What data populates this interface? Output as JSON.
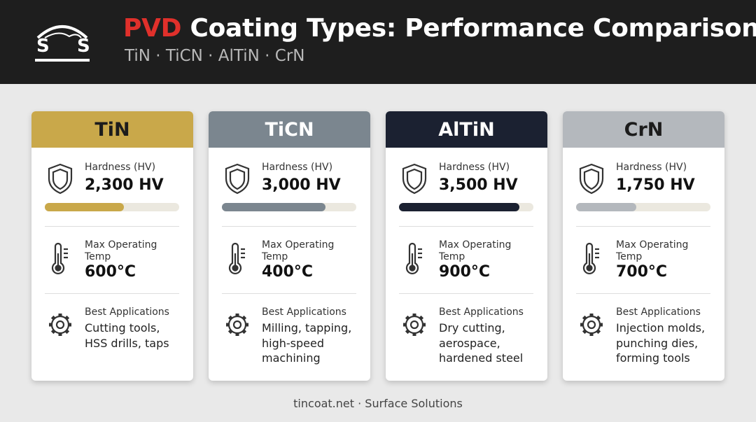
{
  "header": {
    "logo": [
      "S",
      "S"
    ],
    "title_accent": "PVD",
    "title_rest": "Coating Types: Performance Comparison",
    "subtitle": "TiN · TiCN · AlTiN · CrN"
  },
  "hardness_scale": [
    0,
    3900
  ],
  "cards": [
    {
      "name": "TiN",
      "color": "#c9a84a",
      "name_color": "#1c1c1c",
      "hardness_label": "Hardness (HV)",
      "hardness": {
        "value": 2300,
        "label": "2,300 HV"
      },
      "temp_label": "Max Operating Temp",
      "temp": "600°C",
      "apps_label": "Best Applications",
      "apps": [
        "Cutting tools,",
        "HSS drills, taps"
      ]
    },
    {
      "name": "TiCN",
      "color": "#7b868f",
      "name_color": "#ffffff",
      "hardness_label": "Hardness (HV)",
      "hardness": {
        "value": 3000,
        "label": "3,000 HV"
      },
      "temp_label": "Max Operating Temp",
      "temp": "400°C",
      "apps_label": "Best Applications",
      "apps": [
        "Milling, tapping,",
        "high-speed",
        "machining"
      ]
    },
    {
      "name": "AlTiN",
      "color": "#1b2131",
      "name_color": "#ffffff",
      "hardness_label": "Hardness (HV)",
      "hardness": {
        "value": 3500,
        "label": "3,500 HV"
      },
      "temp_label": "Max Operating Temp",
      "temp": "900°C",
      "apps_label": "Best Applications",
      "apps": [
        "Dry cutting,",
        "aerospace,",
        "hardened steel"
      ]
    },
    {
      "name": "CrN",
      "color": "#b4b8bd",
      "name_color": "#1c1c1c",
      "hardness_label": "Hardness (HV)",
      "hardness": {
        "value": 1750,
        "label": "1,750 HV"
      },
      "temp_label": "Max Operating Temp",
      "temp": "700°C",
      "apps_label": "Best Applications",
      "apps": [
        "Injection molds,",
        "punching dies,",
        "forming tools"
      ]
    }
  ],
  "footer": "tincoat.net · Surface Solutions"
}
